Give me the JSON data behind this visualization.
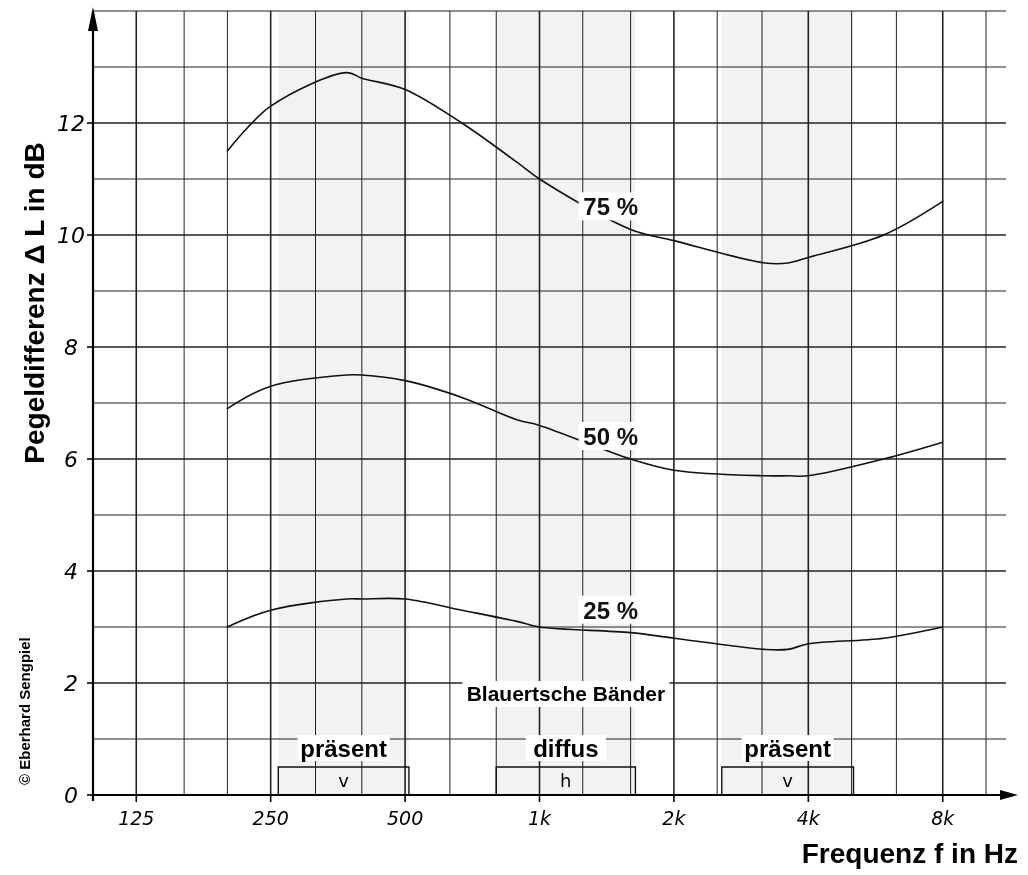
{
  "chart_data": {
    "type": "line",
    "xlabel": "Frequenz f in Hz",
    "ylabel": "Pegeldifferenz Δ L in dB",
    "log": "x",
    "grid": true,
    "legend": false,
    "marker": "none",
    "line_style": "solid",
    "x": [
      200,
      250,
      370,
      400,
      500,
      670,
      890,
      1000,
      1600,
      2000,
      3200,
      3600,
      4000,
      5900,
      8000
    ],
    "series": [
      {
        "name": "75 %",
        "color": "#111111",
        "values": [
          11.5,
          12.3,
          12.9,
          12.8,
          12.6,
          12.0,
          11.3,
          11.0,
          10.1,
          9.9,
          9.5,
          9.5,
          9.6,
          10.0,
          10.6
        ]
      },
      {
        "name": "50 %",
        "color": "#111111",
        "values": [
          6.9,
          7.3,
          7.5,
          7.5,
          7.4,
          7.1,
          6.7,
          6.6,
          6.0,
          5.8,
          5.7,
          5.7,
          5.7,
          6.0,
          6.3
        ]
      },
      {
        "name": "25 %",
        "color": "#111111",
        "values": [
          3.0,
          3.3,
          3.5,
          3.5,
          3.5,
          3.3,
          3.1,
          3.0,
          2.9,
          2.8,
          2.6,
          2.6,
          2.7,
          2.8,
          3.0
        ]
      }
    ],
    "xlim": [
      100,
      10000
    ],
    "xticks": [
      {
        "value": 100,
        "label": null
      },
      {
        "value": 125,
        "label": "125"
      },
      {
        "value": 160,
        "label": null
      },
      {
        "value": 200,
        "label": null
      },
      {
        "value": 250,
        "label": "250"
      },
      {
        "value": 315,
        "label": null
      },
      {
        "value": 400,
        "label": null
      },
      {
        "value": 500,
        "label": "500"
      },
      {
        "value": 630,
        "label": null
      },
      {
        "value": 800,
        "label": null
      },
      {
        "value": 1000,
        "label": "1k"
      },
      {
        "value": 1250,
        "label": null
      },
      {
        "value": 1600,
        "label": null
      },
      {
        "value": 2000,
        "label": "2k"
      },
      {
        "value": 2500,
        "label": null
      },
      {
        "value": 3150,
        "label": null
      },
      {
        "value": 4000,
        "label": "4k"
      },
      {
        "value": 5000,
        "label": null
      },
      {
        "value": 6300,
        "label": null
      },
      {
        "value": 8000,
        "label": "8k"
      },
      {
        "value": 10000,
        "label": null
      }
    ],
    "ylim": [
      0,
      14
    ],
    "yticks": [
      0,
      {
        "value": 1,
        "label": null
      },
      2,
      {
        "value": 3,
        "label": null
      },
      4,
      {
        "value": 5,
        "label": null
      },
      6,
      {
        "value": 7,
        "label": null
      },
      8,
      {
        "value": 9,
        "label": null
      },
      10,
      {
        "value": 11,
        "label": null
      },
      12,
      {
        "value": 13,
        "label": null
      },
      {
        "value": 14,
        "label": null
      }
    ],
    "bands": [
      {
        "axis": "x",
        "from": 260,
        "to": 510,
        "label": "präsent",
        "color": "#f2f2f2"
      },
      {
        "axis": "x",
        "from": 800,
        "to": 1640,
        "label": "diffus",
        "color": "#f2f2f2"
      },
      {
        "axis": "x",
        "from": 2560,
        "to": 5050,
        "label": "präsent",
        "color": "#f2f2f2"
      }
    ],
    "annotations": [
      "v",
      "h",
      "v",
      "Blauertsche Bänder",
      "© Eberhard Sengpiel"
    ]
  }
}
